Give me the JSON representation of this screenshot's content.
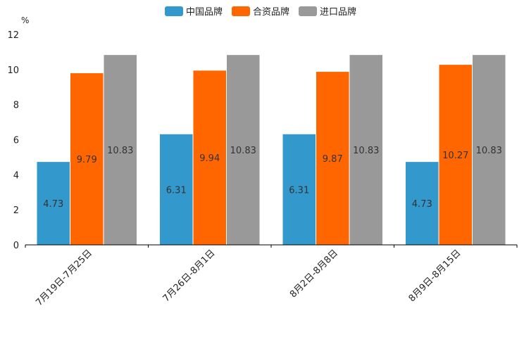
{
  "chart_data": {
    "type": "bar",
    "unit": "%",
    "categories": [
      "7月19日-7月25日",
      "7月26日-8月1日",
      "8月2日-8月8日",
      "8月9日-8月15日"
    ],
    "series": [
      {
        "name": "中国品牌",
        "color": "#3398cc",
        "values": [
          4.73,
          6.31,
          6.31,
          4.73
        ]
      },
      {
        "name": "合资品牌",
        "color": "#ff6600",
        "values": [
          9.79,
          9.94,
          9.87,
          10.27
        ]
      },
      {
        "name": "进口品牌",
        "color": "#999999",
        "values": [
          10.83,
          10.83,
          10.83,
          10.83
        ]
      }
    ],
    "ylim": [
      0,
      12
    ],
    "yticks": [
      0,
      2,
      4,
      6,
      8,
      10,
      12
    ],
    "legend_position": "top-center"
  }
}
